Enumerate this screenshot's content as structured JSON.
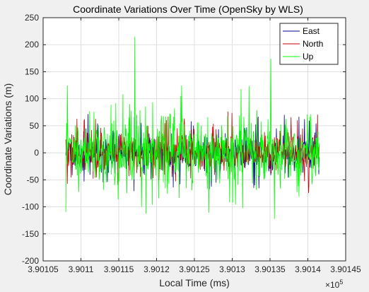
{
  "chart_data": {
    "type": "line",
    "title": "Coordinate Variations Over Time (OpenSky by WLS)",
    "xlabel": "Local Time (ms)",
    "ylabel": "Coordinate Variations (m)",
    "x_exponent_label": "×10",
    "x_exponent_power": "5",
    "xlim": [
      390105,
      390145
    ],
    "ylim": [
      -200,
      250
    ],
    "x_tick_values": [
      390105,
      390110,
      390115,
      390120,
      390125,
      390130,
      390135,
      390140,
      390145
    ],
    "x_tick_labels": [
      "3.90105",
      "3.9011",
      "3.90115",
      "3.9012",
      "3.90125",
      "3.9013",
      "3.90135",
      "3.9014",
      "3.90145"
    ],
    "y_tick_values": [
      -200,
      -150,
      -100,
      -50,
      0,
      50,
      100,
      150,
      200,
      250
    ],
    "y_tick_labels": [
      "-200",
      "-150",
      "-100",
      "-50",
      "0",
      "50",
      "100",
      "150",
      "200",
      "250"
    ],
    "grid": true,
    "legend_position": "top-right",
    "x_range": [
      390108,
      390141.5
    ],
    "series": [
      {
        "name": "East",
        "color": "#00008b",
        "amplitude": 30,
        "peak_amplitude": 60,
        "seed": 11
      },
      {
        "name": "North",
        "color": "#cc0000",
        "amplitude": 32,
        "peak_amplitude": 70,
        "seed": 29
      },
      {
        "name": "Up",
        "color": "#00ff00",
        "amplitude": 55,
        "peak_amplitude": 225,
        "seed": 47
      }
    ],
    "noise_note": "dense noisy traces; per-sample values not readable"
  }
}
